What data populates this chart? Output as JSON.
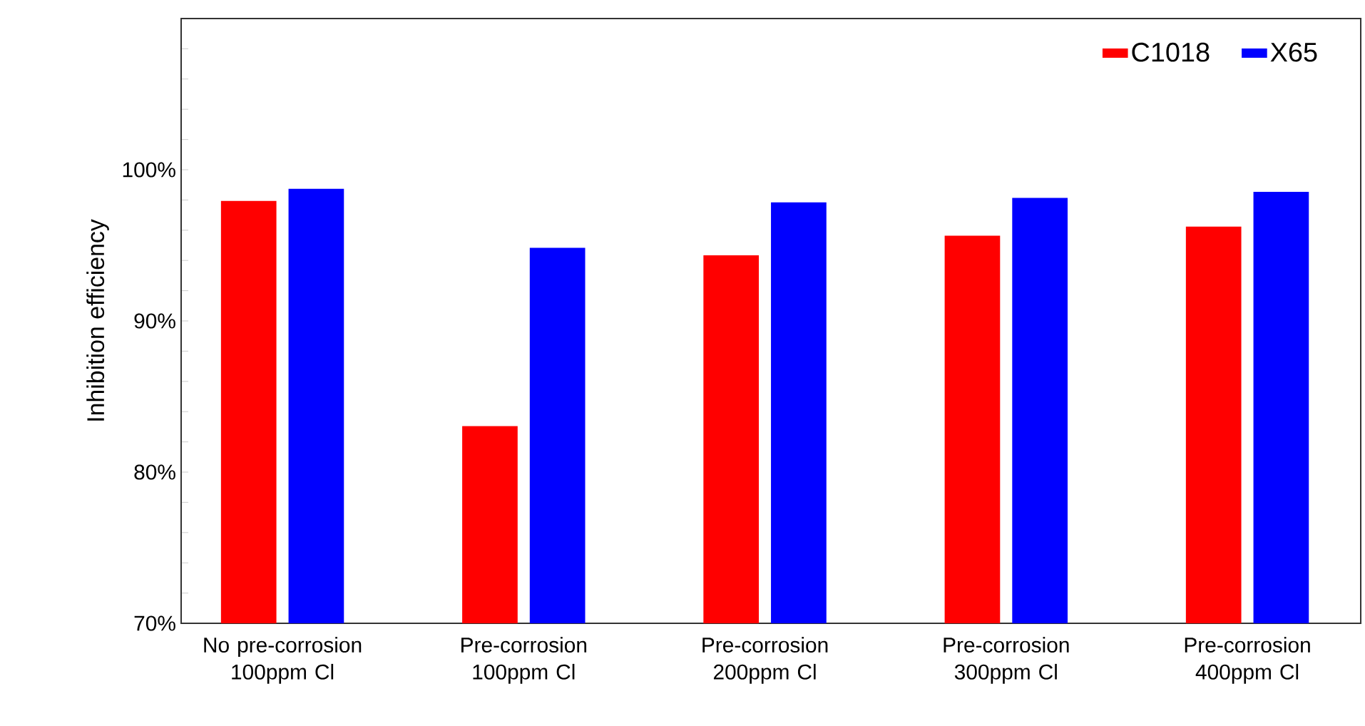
{
  "chart_data": {
    "type": "bar",
    "ylabel": "Inhibition efficiency",
    "categories": [
      "No pre-corrosion 100ppm Cl",
      "Pre-corrosion 100ppm Cl",
      "Pre-corrosion 200ppm Cl",
      "Pre-corrosion 300ppm Cl",
      "Pre-corrosion 400ppm Cl"
    ],
    "series": [
      {
        "name": "C1018",
        "color": "#ff0000",
        "values": [
          97.9,
          83.0,
          94.3,
          95.6,
          96.2
        ]
      },
      {
        "name": "X65",
        "color": "#0000ff",
        "values": [
          98.7,
          94.8,
          97.8,
          98.1,
          98.5
        ]
      }
    ],
    "ylim": [
      70,
      110
    ],
    "yticks": [
      {
        "value": 70,
        "label": "70%"
      },
      {
        "value": 72,
        "label": null
      },
      {
        "value": 74,
        "label": null
      },
      {
        "value": 76,
        "label": null
      },
      {
        "value": 78,
        "label": null
      },
      {
        "value": 80,
        "label": "80%"
      },
      {
        "value": 82,
        "label": null
      },
      {
        "value": 84,
        "label": null
      },
      {
        "value": 86,
        "label": null
      },
      {
        "value": 88,
        "label": null
      },
      {
        "value": 90,
        "label": "90%"
      },
      {
        "value": 92,
        "label": null
      },
      {
        "value": 94,
        "label": null
      },
      {
        "value": 96,
        "label": null
      },
      {
        "value": 98,
        "label": null
      },
      {
        "value": 100,
        "label": "100%"
      },
      {
        "value": 102,
        "label": null
      },
      {
        "value": 104,
        "label": null
      },
      {
        "value": 106,
        "label": null
      },
      {
        "value": 108,
        "label": null
      }
    ],
    "grid": false,
    "legend": "top right"
  }
}
